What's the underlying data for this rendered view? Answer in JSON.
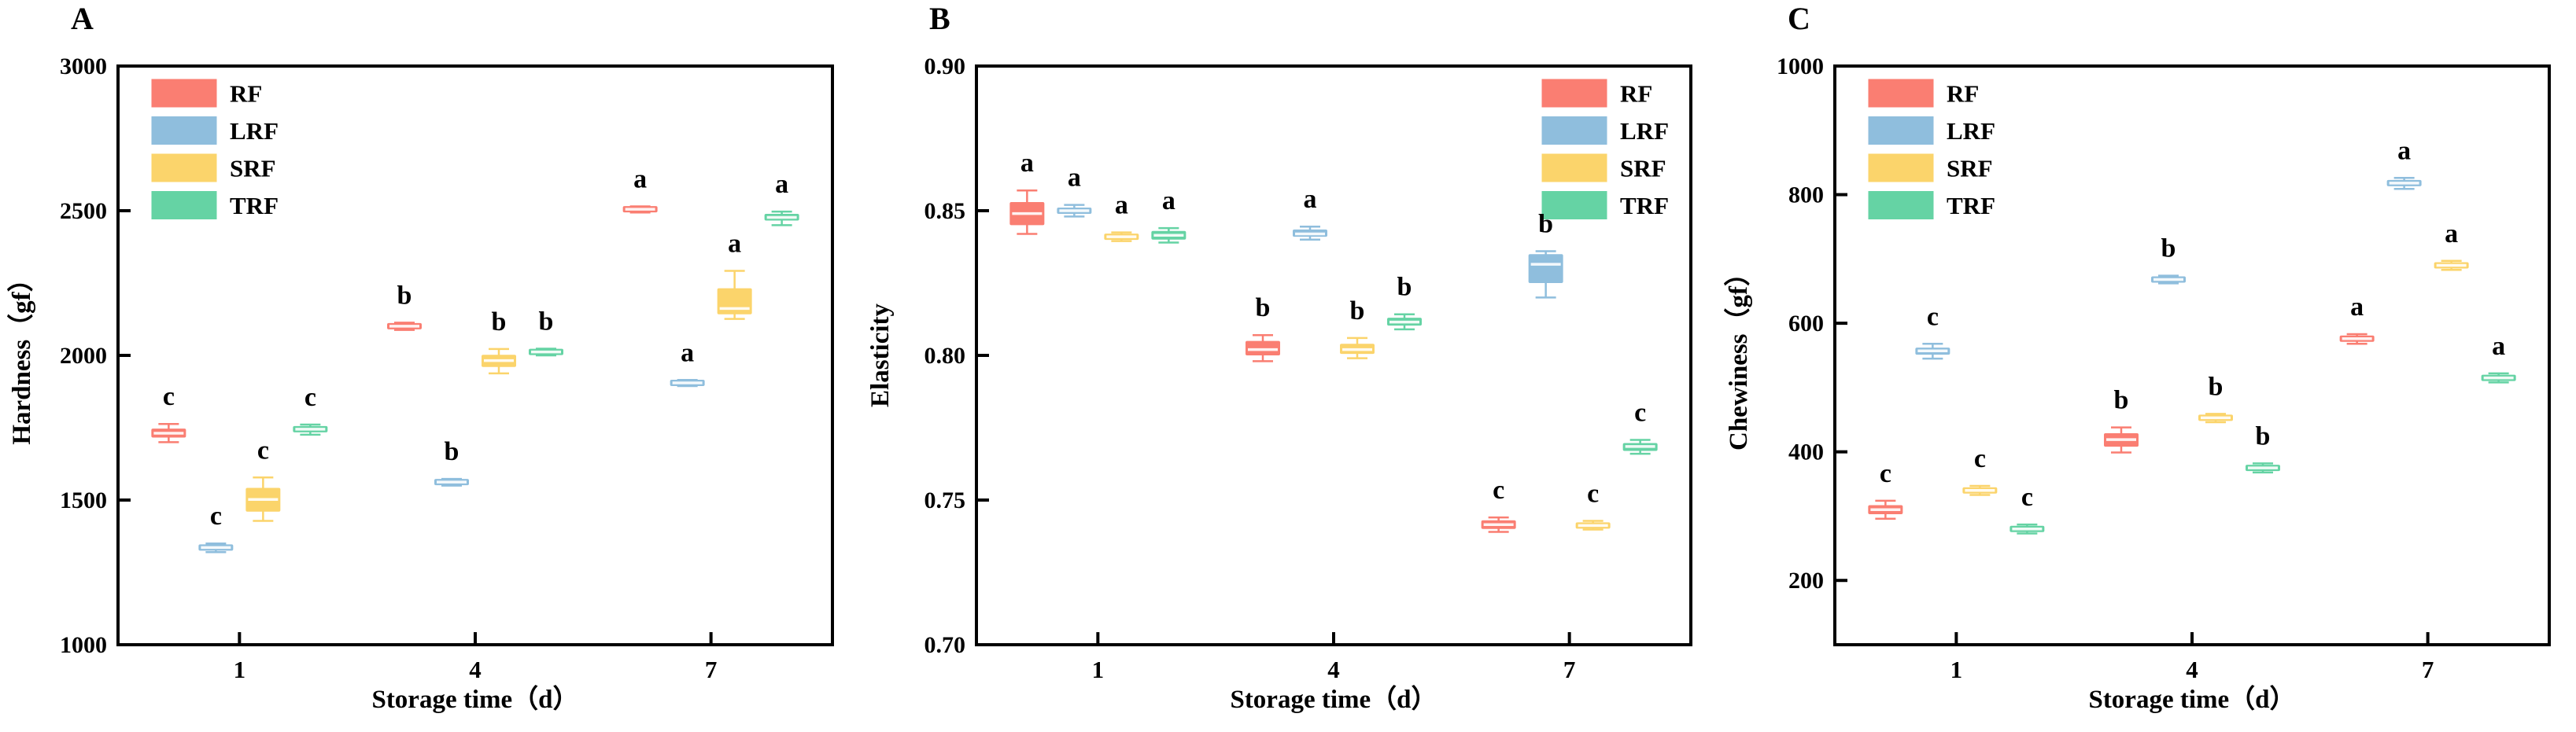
{
  "figure": {
    "background": "#ffffff",
    "groups": [
      "RF",
      "LRF",
      "SRF",
      "TRF"
    ],
    "group_colors": {
      "RF": "#FA7E72",
      "LRF": "#8FBEDD",
      "SRF": "#FBD46B",
      "TRF": "#65D3A4"
    },
    "axis_color": "#000000",
    "median_line_color": "rgba(255,255,255,0.9)",
    "significance_letter_color": "#000000"
  },
  "chart_data": [
    {
      "type": "box",
      "panel_label": "A",
      "title": "",
      "xlabel": "Storage time（d）",
      "ylabel": "Hardness（gf）",
      "categories": [
        "1",
        "4",
        "7"
      ],
      "ylim": [
        1000,
        3000
      ],
      "yticks": [
        1000,
        1500,
        2000,
        2500,
        3000
      ],
      "ytick_labels": [
        "1000",
        "1500",
        "2000",
        "2500",
        "3000"
      ],
      "grid": false,
      "legend_position": "top-left",
      "legend_entries": [
        {
          "label": "RF",
          "color": "#FA7E72"
        },
        {
          "label": "LRF",
          "color": "#8FBEDD"
        },
        {
          "label": "SRF",
          "color": "#FBD46B"
        },
        {
          "label": "TRF",
          "color": "#65D3A4"
        }
      ],
      "series": [
        {
          "name": "RF",
          "color": "#FA7E72",
          "boxes": [
            {
              "low": 1700,
              "q1": 1716,
              "median": 1731,
              "q3": 1747,
              "high": 1763,
              "letter": "c"
            },
            {
              "low": 2088,
              "q1": 2095,
              "median": 2101,
              "q3": 2107,
              "high": 2113,
              "letter": "b"
            },
            {
              "low": 2494,
              "q1": 2500,
              "median": 2505,
              "q3": 2510,
              "high": 2515,
              "letter": "a"
            }
          ]
        },
        {
          "name": "LRF",
          "color": "#8FBEDD",
          "boxes": [
            {
              "low": 1320,
              "q1": 1328,
              "median": 1336,
              "q3": 1343,
              "high": 1350,
              "letter": "c"
            },
            {
              "low": 1550,
              "q1": 1556,
              "median": 1562,
              "q3": 1567,
              "high": 1573,
              "letter": "b"
            },
            {
              "low": 1894,
              "q1": 1900,
              "median": 1905,
              "q3": 1910,
              "high": 1915,
              "letter": "a"
            }
          ]
        },
        {
          "name": "SRF",
          "color": "#FBD46B",
          "boxes": [
            {
              "low": 1428,
              "q1": 1460,
              "median": 1502,
              "q3": 1542,
              "high": 1578,
              "letter": "c"
            },
            {
              "low": 1938,
              "q1": 1960,
              "median": 1982,
              "q3": 2002,
              "high": 2022,
              "letter": "b"
            },
            {
              "low": 2126,
              "q1": 2142,
              "median": 2162,
              "q3": 2232,
              "high": 2292,
              "letter": "a"
            }
          ]
        },
        {
          "name": "TRF",
          "color": "#65D3A4",
          "boxes": [
            {
              "low": 1726,
              "q1": 1737,
              "median": 1745,
              "q3": 1753,
              "high": 1761,
              "letter": "c"
            },
            {
              "low": 2000,
              "q1": 2006,
              "median": 2012,
              "q3": 2017,
              "high": 2023,
              "letter": "b"
            },
            {
              "low": 2450,
              "q1": 2466,
              "median": 2477,
              "q3": 2489,
              "high": 2497,
              "letter": "a"
            }
          ]
        }
      ]
    },
    {
      "type": "box",
      "panel_label": "B",
      "title": "",
      "xlabel": "Storage time（d）",
      "ylabel": "Elasticity",
      "categories": [
        "1",
        "4",
        "7"
      ],
      "ylim": [
        0.7,
        0.9
      ],
      "yticks": [
        0.7,
        0.75,
        0.8,
        0.85,
        0.9
      ],
      "ytick_labels": [
        "0.70",
        "0.75",
        "0.80",
        "0.85",
        "0.90"
      ],
      "grid": false,
      "legend_position": "top-right",
      "legend_entries": [
        {
          "label": "RF",
          "color": "#FA7E72"
        },
        {
          "label": "LRF",
          "color": "#8FBEDD"
        },
        {
          "label": "SRF",
          "color": "#FBD46B"
        },
        {
          "label": "TRF",
          "color": "#65D3A4"
        }
      ],
      "series": [
        {
          "name": "RF",
          "color": "#FA7E72",
          "boxes": [
            {
              "low": 0.842,
              "q1": 0.845,
              "median": 0.849,
              "q3": 0.853,
              "high": 0.857,
              "letter": "a"
            },
            {
              "low": 0.798,
              "q1": 0.8,
              "median": 0.802,
              "q3": 0.805,
              "high": 0.807,
              "letter": "b"
            },
            {
              "low": 0.739,
              "q1": 0.74,
              "median": 0.7415,
              "q3": 0.743,
              "high": 0.744,
              "letter": "c"
            }
          ]
        },
        {
          "name": "LRF",
          "color": "#8FBEDD",
          "boxes": [
            {
              "low": 0.848,
              "q1": 0.849,
              "median": 0.85,
              "q3": 0.851,
              "high": 0.852,
              "letter": "a"
            },
            {
              "low": 0.84,
              "q1": 0.841,
              "median": 0.842,
              "q3": 0.8435,
              "high": 0.8445,
              "letter": "a"
            },
            {
              "low": 0.82,
              "q1": 0.825,
              "median": 0.8315,
              "q3": 0.835,
              "high": 0.836,
              "letter": "b"
            }
          ]
        },
        {
          "name": "SRF",
          "color": "#FBD46B",
          "boxes": [
            {
              "low": 0.8395,
              "q1": 0.8403,
              "median": 0.841,
              "q3": 0.8417,
              "high": 0.8425,
              "letter": "a"
            },
            {
              "low": 0.799,
              "q1": 0.8005,
              "median": 0.802,
              "q3": 0.804,
              "high": 0.806,
              "letter": "b"
            },
            {
              "low": 0.7398,
              "q1": 0.7405,
              "median": 0.7412,
              "q3": 0.742,
              "high": 0.7428,
              "letter": "c"
            }
          ]
        },
        {
          "name": "TRF",
          "color": "#65D3A4",
          "boxes": [
            {
              "low": 0.839,
              "q1": 0.84,
              "median": 0.8415,
              "q3": 0.843,
              "high": 0.844,
              "letter": "a"
            },
            {
              "low": 0.809,
              "q1": 0.8103,
              "median": 0.8115,
              "q3": 0.813,
              "high": 0.8142,
              "letter": "b"
            },
            {
              "low": 0.766,
              "q1": 0.767,
              "median": 0.7685,
              "q3": 0.7697,
              "high": 0.7708,
              "letter": "c"
            }
          ]
        }
      ]
    },
    {
      "type": "box",
      "panel_label": "C",
      "title": "",
      "xlabel": "Storage time（d）",
      "ylabel": "Chewiness（gf）",
      "categories": [
        "1",
        "4",
        "7"
      ],
      "ylim": [
        100,
        1000
      ],
      "yticks": [
        200,
        400,
        600,
        800,
        1000
      ],
      "ytick_labels": [
        "200",
        "400",
        "600",
        "800",
        "1000"
      ],
      "grid": false,
      "legend_position": "top-left",
      "legend_entries": [
        {
          "label": "RF",
          "color": "#FA7E72"
        },
        {
          "label": "LRF",
          "color": "#8FBEDD"
        },
        {
          "label": "SRF",
          "color": "#FBD46B"
        },
        {
          "label": "TRF",
          "color": "#65D3A4"
        }
      ],
      "series": [
        {
          "name": "RF",
          "color": "#FA7E72",
          "boxes": [
            {
              "low": 296,
              "q1": 303,
              "median": 310,
              "q3": 317,
              "high": 324,
              "letter": "c"
            },
            {
              "low": 399,
              "q1": 408,
              "median": 419,
              "q3": 429,
              "high": 438,
              "letter": "b"
            },
            {
              "low": 568,
              "q1": 572,
              "median": 576,
              "q3": 580,
              "high": 583,
              "letter": "a"
            }
          ]
        },
        {
          "name": "LRF",
          "color": "#8FBEDD",
          "boxes": [
            {
              "low": 545,
              "q1": 551,
              "median": 557,
              "q3": 562,
              "high": 568,
              "letter": "c"
            },
            {
              "low": 662,
              "q1": 665,
              "median": 668,
              "q3": 671,
              "high": 674,
              "letter": "b"
            },
            {
              "low": 809,
              "q1": 813,
              "median": 818,
              "q3": 822,
              "high": 826,
              "letter": "a"
            }
          ]
        },
        {
          "name": "SRF",
          "color": "#FBD46B",
          "boxes": [
            {
              "low": 333,
              "q1": 337,
              "median": 340,
              "q3": 344,
              "high": 347,
              "letter": "c"
            },
            {
              "low": 446,
              "q1": 450,
              "median": 453,
              "q3": 456,
              "high": 459,
              "letter": "b"
            },
            {
              "low": 683,
              "q1": 687,
              "median": 690,
              "q3": 694,
              "high": 697,
              "letter": "a"
            }
          ]
        },
        {
          "name": "TRF",
          "color": "#65D3A4",
          "boxes": [
            {
              "low": 273,
              "q1": 277,
              "median": 280,
              "q3": 284,
              "high": 287,
              "letter": "c"
            },
            {
              "low": 368,
              "q1": 372,
              "median": 375,
              "q3": 379,
              "high": 382,
              "letter": "b"
            },
            {
              "low": 508,
              "q1": 512,
              "median": 515,
              "q3": 519,
              "high": 522,
              "letter": "a"
            }
          ]
        }
      ]
    }
  ]
}
